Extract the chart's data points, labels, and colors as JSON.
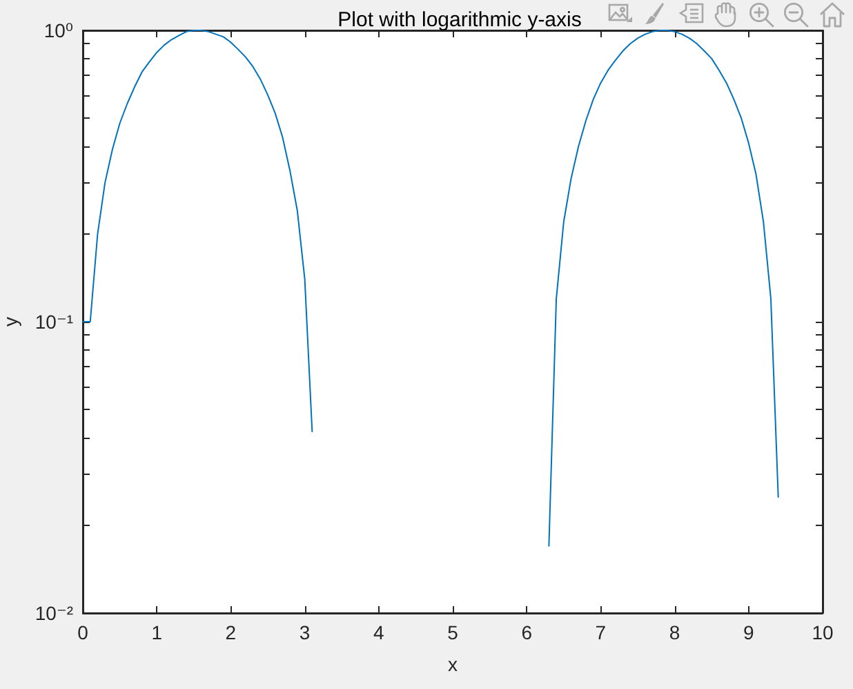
{
  "chart_data": {
    "type": "line",
    "title": "Plot with logarithmic y-axis",
    "xlabel": "x",
    "ylabel": "y",
    "log": "y",
    "marker": "none",
    "line_style": "solid",
    "xlim": [
      0,
      10
    ],
    "xticks": [
      0,
      1,
      2,
      3,
      4,
      5,
      6,
      7,
      8,
      9,
      10
    ],
    "ylim": [
      0.01,
      1
    ],
    "yticks": [
      {
        "value": 0.01,
        "label": "10⁻²"
      },
      {
        "value": 0.02,
        "label": null
      },
      {
        "value": 0.03,
        "label": null
      },
      {
        "value": 0.04,
        "label": null
      },
      {
        "value": 0.05,
        "label": null
      },
      {
        "value": 0.06,
        "label": null
      },
      {
        "value": 0.07,
        "label": null
      },
      {
        "value": 0.08,
        "label": null
      },
      {
        "value": 0.09,
        "label": null
      },
      {
        "value": 0.1,
        "label": "10⁻¹"
      },
      {
        "value": 0.2,
        "label": null
      },
      {
        "value": 0.3,
        "label": null
      },
      {
        "value": 0.4,
        "label": null
      },
      {
        "value": 0.5,
        "label": null
      },
      {
        "value": 0.6,
        "label": null
      },
      {
        "value": 0.7,
        "label": null
      },
      {
        "value": 0.8,
        "label": null
      },
      {
        "value": 0.9,
        "label": null
      },
      {
        "value": 1,
        "label": "10⁰"
      }
    ],
    "color": "#0072bd",
    "x": [
      0,
      0.1,
      0.2,
      0.3,
      0.4,
      0.5,
      0.6,
      0.7,
      0.8,
      0.9,
      1.0,
      1.1,
      1.2,
      1.3,
      1.4,
      1.5,
      1.6,
      1.7,
      1.8,
      1.9,
      2.0,
      2.1,
      2.2,
      2.3,
      2.4,
      2.5,
      2.6,
      2.7,
      2.8,
      2.9,
      3.0,
      3.1,
      3.2,
      6.3,
      6.4,
      6.5,
      6.6,
      6.7,
      6.8,
      6.9,
      7.0,
      7.1,
      7.2,
      7.3,
      7.4,
      7.5,
      7.6,
      7.7,
      7.8,
      7.9,
      8.0,
      8.1,
      8.2,
      8.3,
      8.4,
      8.5,
      8.6,
      8.7,
      8.8,
      8.9,
      9.0,
      9.1,
      9.2,
      9.3,
      9.4
    ],
    "values": [
      0.1,
      0.1,
      0.2,
      0.3,
      0.39,
      0.48,
      0.56,
      0.64,
      0.72,
      0.78,
      0.84,
      0.89,
      0.93,
      0.96,
      0.99,
      1.0,
      1.0,
      0.99,
      0.97,
      0.95,
      0.91,
      0.86,
      0.81,
      0.75,
      0.68,
      0.6,
      0.52,
      0.43,
      0.33,
      0.24,
      0.14,
      0.042,
      null,
      0.017,
      0.12,
      0.22,
      0.31,
      0.4,
      0.49,
      0.58,
      0.66,
      0.73,
      0.79,
      0.85,
      0.9,
      0.94,
      0.97,
      0.99,
      1.0,
      1.0,
      0.99,
      0.97,
      0.94,
      0.9,
      0.85,
      0.8,
      0.73,
      0.66,
      0.58,
      0.5,
      0.41,
      0.32,
      0.22,
      0.12,
      0.025
    ]
  }
}
